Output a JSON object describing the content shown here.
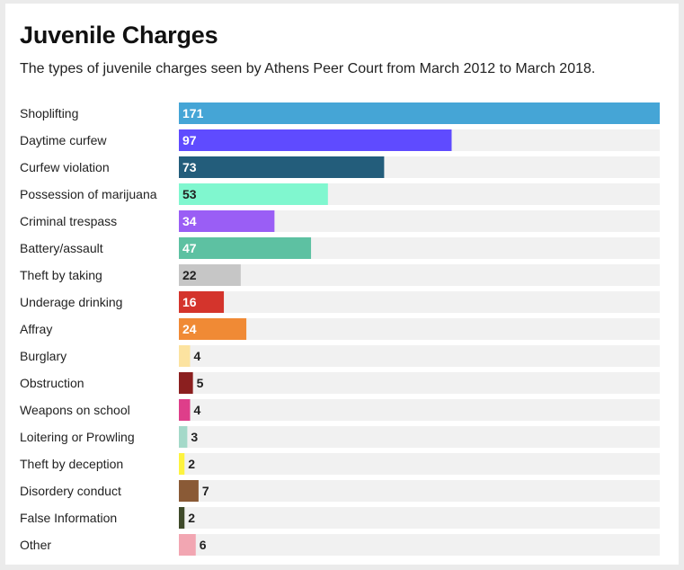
{
  "title": "Juvenile Charges",
  "subtitle": "The types of juvenile charges seen by Athens Peer Court from March 2012 to March 2018.",
  "chart_data": {
    "type": "bar",
    "orientation": "horizontal",
    "title": "Juvenile Charges",
    "subtitle": "The types of juvenile charges seen by Athens Peer Court from March 2012 to March 2018.",
    "categories": [
      "Shoplifting",
      "Daytime curfew",
      "Curfew violation",
      "Possession of marijuana",
      "Criminal trespass",
      "Battery/assault",
      "Theft by taking",
      "Underage drinking",
      "Affray",
      "Burglary",
      "Obstruction",
      "Weapons on school",
      "Loitering or Prowling",
      "Theft by deception",
      "Disordery conduct",
      "False Information",
      "Other"
    ],
    "values": [
      171,
      97,
      73,
      53,
      34,
      47,
      22,
      16,
      24,
      4,
      5,
      4,
      3,
      2,
      7,
      2,
      6
    ],
    "colors": [
      "#45a5d6",
      "#5f4bff",
      "#235d7b",
      "#80f7cf",
      "#9a5ef5",
      "#5dc1a2",
      "#c6c6c6",
      "#d4342c",
      "#f08a35",
      "#fce3a0",
      "#8b1f1f",
      "#de3e8a",
      "#a4d9c9",
      "#fdf33f",
      "#8a5a36",
      "#3e4a2a",
      "#f2a6b2"
    ],
    "label_colors": [
      "#ffffff",
      "#ffffff",
      "#ffffff",
      "#222222",
      "#ffffff",
      "#ffffff",
      "#222222",
      "#ffffff",
      "#ffffff",
      "#222222",
      "#ffffff",
      "#222222",
      "#222222",
      "#222222",
      "#ffffff",
      "#222222",
      "#222222"
    ],
    "track_color": "#f1f1f1",
    "xlim": [
      0,
      171
    ],
    "grid": false,
    "legend": false
  }
}
